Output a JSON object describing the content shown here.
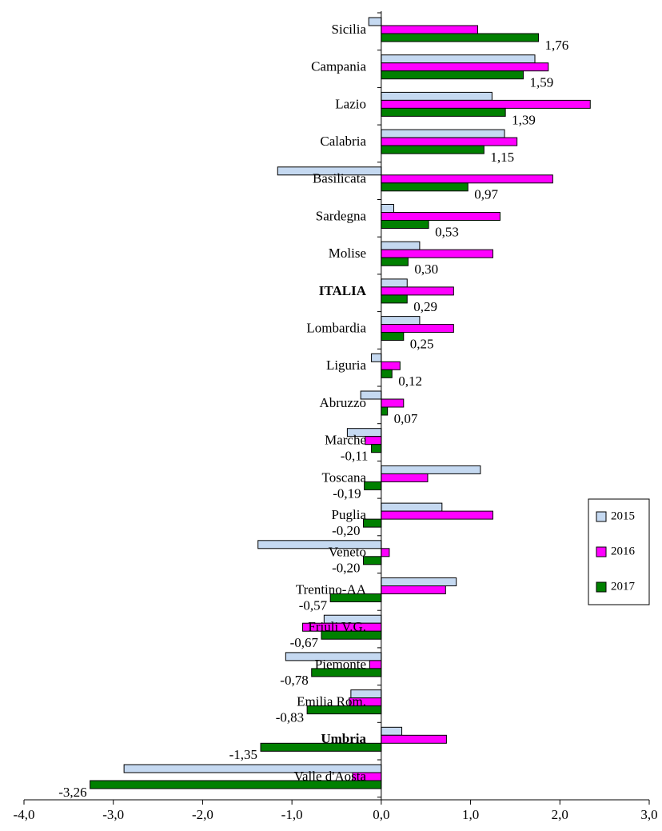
{
  "chart_data": {
    "type": "hbar",
    "categories": [
      "Sicilia",
      "Campania",
      "Lazio",
      "Calabria",
      "Basilicata",
      "Sardegna",
      "Molise",
      "ITALIA",
      "Lombardia",
      "Liguria",
      "Abruzzo",
      "Marche",
      "Toscana",
      "Puglia",
      "Veneto",
      "Trentino-AA",
      "Friuli V.G.",
      "Piemonte",
      "Emilia Rom.",
      "Umbria",
      "Valle d'Aosta"
    ],
    "bold": [
      false,
      false,
      false,
      false,
      false,
      false,
      false,
      true,
      false,
      false,
      false,
      false,
      false,
      false,
      false,
      false,
      false,
      false,
      false,
      true,
      false
    ],
    "series": [
      {
        "name": "2015",
        "color": "#c5d9f1",
        "values": [
          -0.14,
          1.72,
          1.24,
          1.38,
          -1.16,
          0.14,
          0.43,
          0.29,
          0.43,
          -0.11,
          -0.23,
          -0.38,
          1.11,
          0.68,
          -1.38,
          0.84,
          -0.64,
          -1.07,
          -0.34,
          0.23,
          -2.88
        ]
      },
      {
        "name": "2016",
        "color": "#ff00ff",
        "values": [
          1.08,
          1.87,
          2.34,
          1.52,
          1.92,
          1.33,
          1.25,
          0.81,
          0.81,
          0.21,
          0.25,
          -0.18,
          0.52,
          1.25,
          0.09,
          0.72,
          -0.88,
          -0.13,
          -0.36,
          0.73,
          -0.32
        ]
      },
      {
        "name": "2017",
        "color": "#008000",
        "values": [
          1.76,
          1.59,
          1.39,
          1.15,
          0.97,
          0.53,
          0.3,
          0.29,
          0.25,
          0.12,
          0.07,
          -0.11,
          -0.19,
          -0.2,
          -0.2,
          -0.57,
          -0.67,
          -0.78,
          -0.83,
          -1.35,
          -3.26
        ],
        "value_labels": [
          "1,76",
          "1,59",
          "1,39",
          "1,15",
          "0,97",
          "0,53",
          "0,30",
          "0,29",
          "0,25",
          "0,12",
          "0,07",
          "-0,11",
          "-0,19",
          "-0,20",
          "-0,20",
          "-0,57",
          "-0,67",
          "-0,78",
          "-0,83",
          "-1,35",
          "-3,26"
        ]
      }
    ],
    "xlim": [
      -4,
      3
    ],
    "xticks": [
      {
        "value": -4,
        "label": "-4,0"
      },
      {
        "value": -3,
        "label": "-3,0"
      },
      {
        "value": -2,
        "label": "-2,0"
      },
      {
        "value": -1,
        "label": "-1,0"
      },
      {
        "value": 0,
        "label": "0,0"
      },
      {
        "value": 1,
        "label": "1,0"
      },
      {
        "value": 2,
        "label": "2,0"
      },
      {
        "value": 3,
        "label": "3,0"
      }
    ],
    "legend": "right"
  }
}
